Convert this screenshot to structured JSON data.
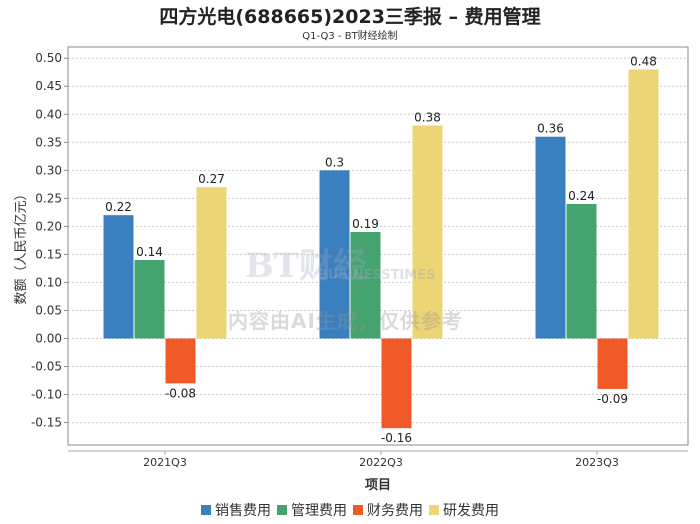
{
  "chart_data": {
    "type": "bar",
    "title": "四方光电(688665)2023三季报 – 费用管理",
    "subtitle": "Q1-Q3 - BT财经绘制",
    "xlabel": "项目",
    "ylabel": "数额（人民币亿元）",
    "categories": [
      "2021Q3",
      "2022Q3",
      "2023Q3"
    ],
    "ylim": [
      -0.19,
      0.52
    ],
    "yticks": [
      -0.15,
      -0.1,
      -0.05,
      0.0,
      0.05,
      0.1,
      0.15,
      0.2,
      0.25,
      0.3,
      0.35,
      0.4,
      0.45,
      0.5
    ],
    "ytick_labels": [
      "-0.15",
      "-0.10",
      "-0.05",
      "0.00",
      "0.05",
      "0.10",
      "0.15",
      "0.20",
      "0.25",
      "0.30",
      "0.35",
      "0.40",
      "0.45",
      "0.50"
    ],
    "grid": true,
    "legend_position": "bottom",
    "series": [
      {
        "name": "销售费用",
        "color": "#3a80c0",
        "values": [
          0.22,
          0.3,
          0.36
        ],
        "labels": [
          "0.22",
          "0.3",
          "0.36"
        ]
      },
      {
        "name": "管理费用",
        "color": "#45a36f",
        "values": [
          0.14,
          0.19,
          0.24
        ],
        "labels": [
          "0.14",
          "0.19",
          "0.24"
        ]
      },
      {
        "name": "财务费用",
        "color": "#f05a28",
        "values": [
          -0.08,
          -0.16,
          -0.09
        ],
        "labels": [
          "-0.08",
          "-0.16",
          "-0.09"
        ]
      },
      {
        "name": "研发费用",
        "color": "#ecd574",
        "values": [
          0.27,
          0.38,
          0.48
        ],
        "labels": [
          "0.27",
          "0.38",
          "0.48"
        ]
      }
    ]
  },
  "watermark": {
    "brand": "BT财经",
    "brand_en": "BUSINESSTIMES",
    "notice": "内容由AI生成，仅供参考"
  }
}
